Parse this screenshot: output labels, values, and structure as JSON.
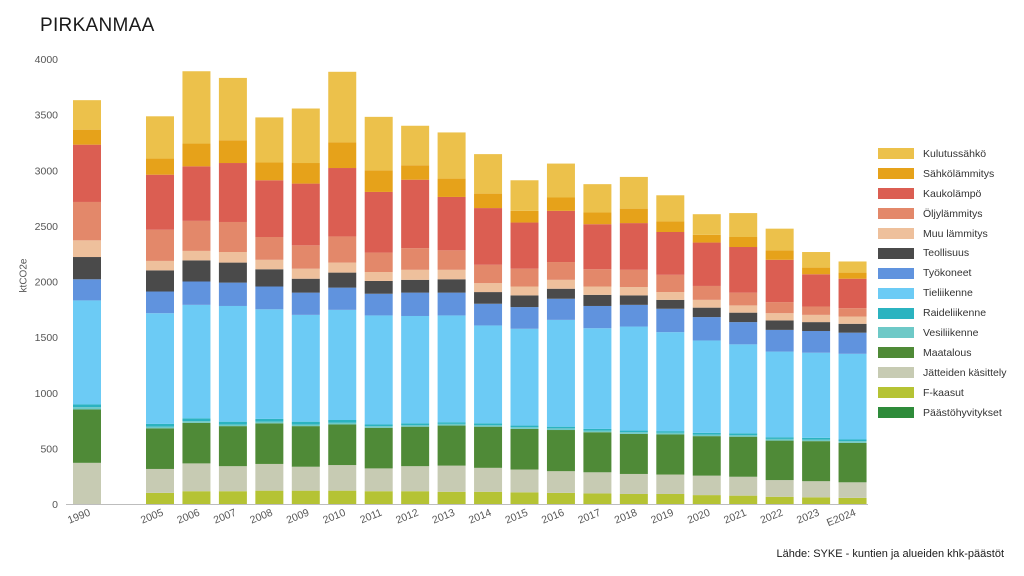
{
  "title": "PIRKANMAA",
  "source": "Lähde: SYKE - kuntien ja alueiden khk-päästöt",
  "chart_data": {
    "type": "bar",
    "stacked": true,
    "title": "PIRKANMAA",
    "ylabel": "ktCO2e",
    "xlabel": "",
    "ylim": [
      0,
      4000
    ],
    "yticks": [
      0,
      500,
      1000,
      1500,
      2000,
      2500,
      3000,
      3500,
      4000
    ],
    "grid": false,
    "legend_position": "right",
    "categories": [
      "1990",
      "2005",
      "2006",
      "2007",
      "2008",
      "2009",
      "2010",
      "2011",
      "2012",
      "2013",
      "2014",
      "2015",
      "2016",
      "2017",
      "2018",
      "2019",
      "2020",
      "2021",
      "2022",
      "2023",
      "E2024"
    ],
    "series": [
      {
        "name": "Päästöhyvitykset",
        "color": "#2e8b3a",
        "values": [
          0,
          0,
          0,
          0,
          0,
          0,
          0,
          0,
          0,
          0,
          0,
          0,
          0,
          0,
          0,
          0,
          0,
          0,
          0,
          0,
          0
        ]
      },
      {
        "name": "F-kaasut",
        "color": "#b5c334",
        "values": [
          0,
          100,
          115,
          115,
          120,
          120,
          120,
          115,
          115,
          110,
          110,
          105,
          100,
          95,
          90,
          90,
          80,
          75,
          65,
          60,
          55
        ]
      },
      {
        "name": "Jätteiden käsittely",
        "color": "#c7cbb3",
        "values": [
          370,
          215,
          250,
          225,
          240,
          215,
          230,
          205,
          225,
          235,
          215,
          205,
          195,
          190,
          180,
          175,
          175,
          170,
          150,
          145,
          140
        ]
      },
      {
        "name": "Maatalous",
        "color": "#4f8a37",
        "values": [
          480,
          365,
          365,
          360,
          365,
          365,
          365,
          365,
          355,
          360,
          370,
          365,
          370,
          360,
          360,
          360,
          355,
          360,
          355,
          360,
          355
        ]
      },
      {
        "name": "Vesiliikenne",
        "color": "#6ec9c7",
        "values": [
          20,
          15,
          15,
          15,
          15,
          15,
          15,
          15,
          15,
          15,
          15,
          15,
          15,
          15,
          15,
          15,
          15,
          15,
          15,
          15,
          15
        ]
      },
      {
        "name": "Raideliikenne",
        "color": "#2bb3c0",
        "values": [
          25,
          25,
          25,
          25,
          25,
          25,
          25,
          15,
          15,
          15,
          15,
          15,
          15,
          15,
          15,
          15,
          15,
          15,
          15,
          15,
          15
        ]
      },
      {
        "name": "Tieliikenne",
        "color": "#6ccbf5",
        "values": [
          935,
          995,
          1020,
          1040,
          985,
          960,
          990,
          980,
          965,
          960,
          880,
          870,
          960,
          905,
          935,
          890,
          830,
          800,
          770,
          765,
          770
        ]
      },
      {
        "name": "Työkoneet",
        "color": "#6093de",
        "values": [
          190,
          195,
          210,
          210,
          205,
          200,
          200,
          195,
          210,
          205,
          195,
          195,
          190,
          200,
          195,
          210,
          210,
          200,
          195,
          195,
          190
        ]
      },
      {
        "name": "Teollisuus",
        "color": "#4a4a4a",
        "values": [
          200,
          190,
          190,
          180,
          155,
          125,
          135,
          115,
          115,
          120,
          105,
          105,
          90,
          100,
          85,
          80,
          85,
          85,
          85,
          80,
          80
        ]
      },
      {
        "name": "Muu lämmitys",
        "color": "#eec09c",
        "values": [
          150,
          85,
          85,
          95,
          85,
          90,
          90,
          80,
          90,
          85,
          80,
          80,
          80,
          75,
          75,
          70,
          70,
          65,
          65,
          65,
          65
        ]
      },
      {
        "name": "Öljylämmitys",
        "color": "#e3886a",
        "values": [
          345,
          280,
          270,
          270,
          205,
          210,
          235,
          175,
          195,
          175,
          165,
          160,
          160,
          155,
          155,
          155,
          125,
          115,
          100,
          75,
          75
        ]
      },
      {
        "name": "Kaukolämpö",
        "color": "#db5e52",
        "values": [
          515,
          495,
          490,
          530,
          510,
          555,
          615,
          545,
          615,
          480,
          510,
          415,
          460,
          405,
          420,
          385,
          390,
          410,
          380,
          290,
          265
        ]
      },
      {
        "name": "Sähkölämmitys",
        "color": "#e6a21a",
        "values": [
          135,
          145,
          205,
          205,
          160,
          185,
          230,
          195,
          130,
          165,
          130,
          105,
          120,
          105,
          130,
          95,
          70,
          90,
          85,
          60,
          55
        ]
      },
      {
        "name": "Kulutussähkö",
        "color": "#ecc14b",
        "values": [
          265,
          380,
          650,
          560,
          405,
          490,
          635,
          480,
          355,
          415,
          355,
          275,
          305,
          255,
          285,
          235,
          185,
          215,
          195,
          140,
          100
        ]
      }
    ]
  }
}
